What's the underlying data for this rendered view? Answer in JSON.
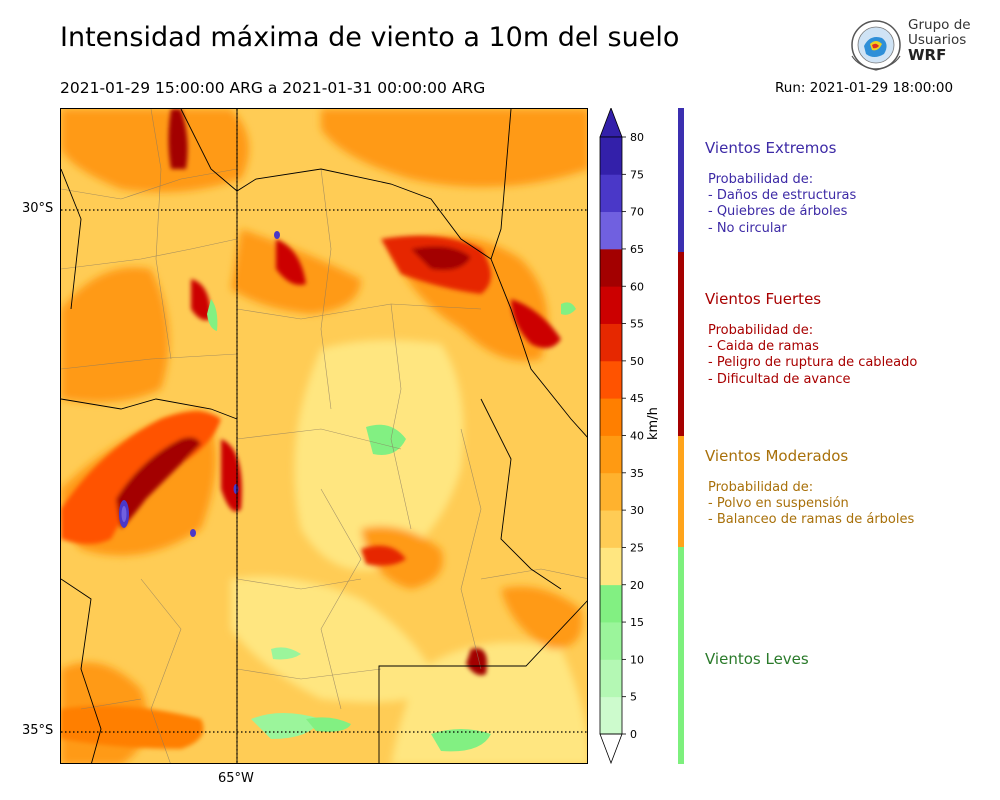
{
  "title": "Intensidad máxima de viento a 10m del suelo",
  "period": "2021-01-29 15:00:00 ARG  a  2021-01-31 00:00:00 ARG",
  "run": "Run: 2021-01-29 18:00:00",
  "logo": {
    "line1": "Grupo de",
    "line2": "Usuarios",
    "line3": "WRF"
  },
  "map": {
    "lat_labels": [
      "30°S",
      "35°S"
    ],
    "lon_label": "65°W"
  },
  "colorbar": {
    "unit": "km/h",
    "ticks": [
      "0",
      "5",
      "10",
      "15",
      "20",
      "25",
      "30",
      "35",
      "40",
      "45",
      "50",
      "55",
      "60",
      "65",
      "70",
      "75",
      "80"
    ],
    "colors": [
      "#e6fde6",
      "#cdfbcd",
      "#b4f8b4",
      "#9bf59b",
      "#82f082",
      "#ffe680",
      "#ffcc55",
      "#ffb22e",
      "#ff9a12",
      "#ff7f00",
      "#ff5300",
      "#e62800",
      "#cc0000",
      "#a30000",
      "#7060e0",
      "#4a38c8",
      "#3320aa"
    ],
    "extend_top_color": "#3320aa"
  },
  "categories": [
    {
      "name": "Vientos Extremos",
      "color": "#3d2aa6",
      "bar_color": "#3b2fb0",
      "desc_header": "Probabilidad de:",
      "items": [
        "- Daños de estructuras",
        "- Quiebres de árboles",
        "- No circular"
      ]
    },
    {
      "name": "Vientos Fuertes",
      "color": "#a80000",
      "bar_color": "#a50000",
      "desc_header": "Probabilidad de:",
      "items": [
        "- Caida de ramas",
        "- Peligro de ruptura de cableado",
        "- Dificultad de avance"
      ]
    },
    {
      "name": "Vientos Moderados",
      "color": "#a8700a",
      "bar_color": "#ffa41b",
      "desc_header": "Probabilidad de:",
      "items": [
        "- Polvo en suspensión",
        "- Balanceo de ramas de árboles"
      ]
    },
    {
      "name": "Vientos Leves",
      "color": "#2a7a2a",
      "bar_color": "#7df07d",
      "desc_header": "",
      "items": []
    }
  ]
}
